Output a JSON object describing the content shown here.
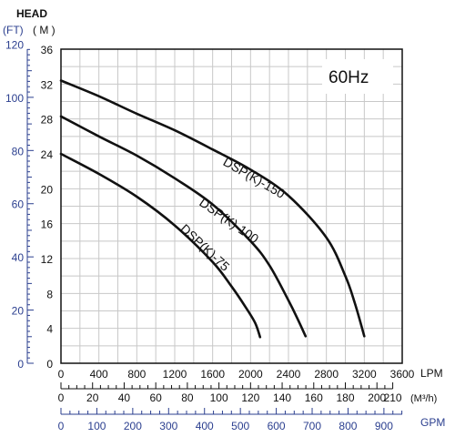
{
  "chart_data": {
    "type": "line",
    "annotation": "60Hz",
    "head_label": "HEAD",
    "left_unit_ft": "(FT)",
    "left_unit_m": "( M )",
    "y_m_ticks": [
      "0",
      "4",
      "8",
      "12",
      "16",
      "20",
      "24",
      "28",
      "32",
      "36"
    ],
    "y_ft_ticks": [
      "0",
      "20",
      "40",
      "60",
      "80",
      "100",
      "120"
    ],
    "x_lpm_ticks": [
      "0",
      "400",
      "800",
      "1200",
      "1600",
      "2000",
      "2400",
      "2800",
      "3200",
      "3600"
    ],
    "x_lpm_unit": "LPM",
    "x_m3h_ticks": [
      "0",
      "20",
      "40",
      "60",
      "80",
      "100",
      "120",
      "140",
      "160",
      "180",
      "200",
      "210"
    ],
    "x_m3h_unit": "(M³/h)",
    "x_gpm_ticks": [
      "0",
      "100",
      "200",
      "300",
      "400",
      "500",
      "600",
      "700",
      "800",
      "900"
    ],
    "x_gpm_unit": "GPM",
    "xlim": [
      0,
      3600
    ],
    "ylim": [
      0,
      36
    ],
    "colors": {
      "curve": "#111111",
      "grid": "#c8c8c8",
      "axis": "#111111",
      "blue_axis": "#2b3f8f"
    },
    "series": [
      {
        "name": "DSP(K)-150",
        "x": [
          0,
          400,
          800,
          1200,
          1600,
          2000,
          2400,
          2800,
          3000,
          3100,
          3200
        ],
        "y": [
          32.4,
          30.6,
          28.6,
          26.7,
          24.5,
          22.2,
          19.2,
          14.4,
          10.0,
          6.9,
          3.1
        ]
      },
      {
        "name": "DSP(K)-100",
        "x": [
          0,
          400,
          800,
          1200,
          1600,
          2000,
          2200,
          2400,
          2500,
          2580
        ],
        "y": [
          28.3,
          26.0,
          23.8,
          21.2,
          18.2,
          14.0,
          11.2,
          7.2,
          5.0,
          3.1
        ]
      },
      {
        "name": "DSP(K)-75",
        "x": [
          0,
          400,
          800,
          1200,
          1600,
          1800,
          1950,
          2050,
          2100
        ],
        "y": [
          24.0,
          21.7,
          19.1,
          15.8,
          11.6,
          8.8,
          6.4,
          4.6,
          3.0
        ]
      }
    ]
  }
}
